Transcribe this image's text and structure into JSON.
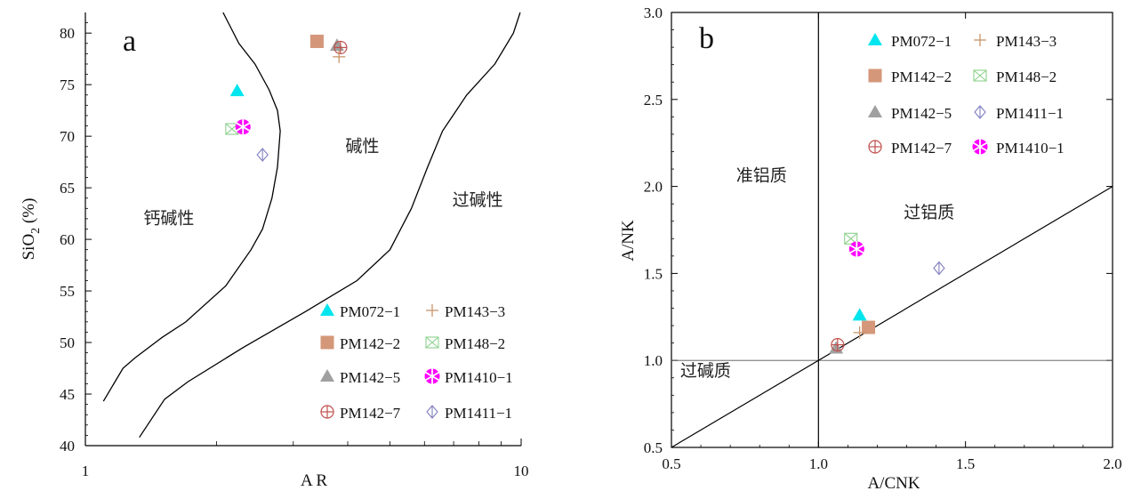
{
  "series_styles": [
    {
      "name": "PM072−1",
      "marker": "triangle",
      "color": "#00E5EE"
    },
    {
      "name": "PM142−2",
      "marker": "square",
      "color": "#D4977A"
    },
    {
      "name": "PM142−5",
      "marker": "triangle",
      "color": "#A0A0A0"
    },
    {
      "name": "PM142−7",
      "marker": "circle-plus",
      "color": "#C0504D"
    },
    {
      "name": "PM143−3",
      "marker": "plus",
      "color": "#C8956A"
    },
    {
      "name": "PM148−2",
      "marker": "box-x",
      "color": "#8ED18E"
    },
    {
      "name": "PM1410−1",
      "marker": "flower",
      "color": "#FF00FF"
    },
    {
      "name": "PM1411−1",
      "marker": "diamond",
      "color": "#8080C0"
    }
  ],
  "chart_data": [
    {
      "type": "scatter",
      "panel_label": "a",
      "title": "",
      "xlabel": "A R",
      "ylabel_main": "SiO",
      "ylabel_sub": "2",
      "ylabel_unit": "(%)",
      "xscale": "log",
      "xlim": [
        1,
        10
      ],
      "ylim": [
        40,
        82
      ],
      "xticks": [
        1,
        10
      ],
      "yticks": [
        40,
        45,
        50,
        55,
        60,
        65,
        70,
        75,
        80
      ],
      "legend_position": "bottom-right",
      "legend_order": [
        [
          0,
          4
        ],
        [
          1,
          5
        ],
        [
          2,
          6
        ],
        [
          3,
          7
        ]
      ],
      "regions": [
        {
          "text": "钙碱性",
          "x": 1.36,
          "y": 61.5
        },
        {
          "text": "碱性",
          "x": 3.95,
          "y": 68.5
        },
        {
          "text": "过碱性",
          "x": 6.95,
          "y": 63.3
        }
      ],
      "curves": [
        [
          [
            2.07,
            82
          ],
          [
            2.25,
            79
          ],
          [
            2.45,
            77
          ],
          [
            2.64,
            74.5
          ],
          [
            2.76,
            72.5
          ],
          [
            2.8,
            70.5
          ],
          [
            2.76,
            67
          ],
          [
            2.68,
            64
          ],
          [
            2.55,
            61
          ],
          [
            2.4,
            59
          ],
          [
            2.1,
            55.5
          ],
          [
            1.7,
            52
          ],
          [
            1.5,
            50.5
          ],
          [
            1.3,
            48.5
          ],
          [
            1.22,
            47.5
          ],
          [
            1.1,
            44.3
          ]
        ],
        [
          [
            1.33,
            40.8
          ],
          [
            1.52,
            44.5
          ],
          [
            1.72,
            46.2
          ],
          [
            2.3,
            49.5
          ],
          [
            3.2,
            53
          ],
          [
            4.2,
            56
          ],
          [
            5.0,
            59
          ],
          [
            5.6,
            63
          ],
          [
            6.1,
            67
          ],
          [
            6.6,
            70.5
          ],
          [
            7.5,
            74
          ],
          [
            8.7,
            77
          ],
          [
            9.6,
            80
          ],
          [
            9.95,
            82
          ]
        ]
      ],
      "series": [
        {
          "name": "PM072−1",
          "points": [
            [
              2.23,
              74.4
            ]
          ]
        },
        {
          "name": "PM142−2",
          "points": [
            [
              3.4,
              79.2
            ]
          ]
        },
        {
          "name": "PM142−5",
          "points": [
            [
              3.78,
              78.8
            ]
          ]
        },
        {
          "name": "PM142−7",
          "points": [
            [
              3.85,
              78.6
            ]
          ]
        },
        {
          "name": "PM143−3",
          "points": [
            [
              3.82,
              77.7
            ]
          ]
        },
        {
          "name": "PM148−2",
          "points": [
            [
              2.17,
              70.7
            ]
          ]
        },
        {
          "name": "PM1410−1",
          "points": [
            [
              2.3,
              70.9
            ]
          ]
        },
        {
          "name": "PM1411−1",
          "points": [
            [
              2.55,
              68.2
            ]
          ]
        }
      ]
    },
    {
      "type": "scatter",
      "panel_label": "b",
      "title": "",
      "xlabel": "A/CNK",
      "ylabel": "A/NK",
      "xscale": "linear",
      "xlim": [
        0.5,
        2.0
      ],
      "ylim": [
        0.5,
        3.0
      ],
      "xticks": [
        "0.5",
        "1.0",
        "1.5",
        "2.0"
      ],
      "yticks": [
        "0.5",
        "1.0",
        "1.5",
        "2.0",
        "2.5",
        "3.0"
      ],
      "legend_position": "top-right",
      "legend_order": [
        [
          0,
          4
        ],
        [
          1,
          5
        ],
        [
          2,
          7
        ],
        [
          3,
          6
        ]
      ],
      "regions": [
        {
          "text": "准铝质",
          "x": 0.72,
          "y": 2.03
        },
        {
          "text": "过铝质",
          "x": 1.29,
          "y": 1.82
        },
        {
          "text": "过碱质",
          "x": 0.53,
          "y": 0.91
        }
      ],
      "lines": [
        {
          "kind": "vertical",
          "x": 1.0,
          "color": "#000000"
        },
        {
          "kind": "horizontal",
          "y": 1.0,
          "color": "#555555"
        },
        {
          "kind": "segment",
          "from": [
            0.5,
            0.5
          ],
          "to": [
            2.0,
            2.0
          ],
          "color": "#000000"
        }
      ],
      "series": [
        {
          "name": "PM072−1",
          "points": [
            [
              1.14,
              1.26
            ]
          ]
        },
        {
          "name": "PM142−2",
          "points": [
            [
              1.17,
              1.19
            ]
          ]
        },
        {
          "name": "PM142−5",
          "points": [
            [
              1.06,
              1.07
            ]
          ]
        },
        {
          "name": "PM142−7",
          "points": [
            [
              1.065,
              1.09
            ]
          ]
        },
        {
          "name": "PM143−3",
          "points": [
            [
              1.14,
              1.16
            ]
          ]
        },
        {
          "name": "PM148−2",
          "points": [
            [
              1.11,
              1.7
            ]
          ]
        },
        {
          "name": "PM1410−1",
          "points": [
            [
              1.13,
              1.64
            ]
          ]
        },
        {
          "name": "PM1411−1",
          "points": [
            [
              1.41,
              1.53
            ]
          ]
        }
      ]
    }
  ]
}
